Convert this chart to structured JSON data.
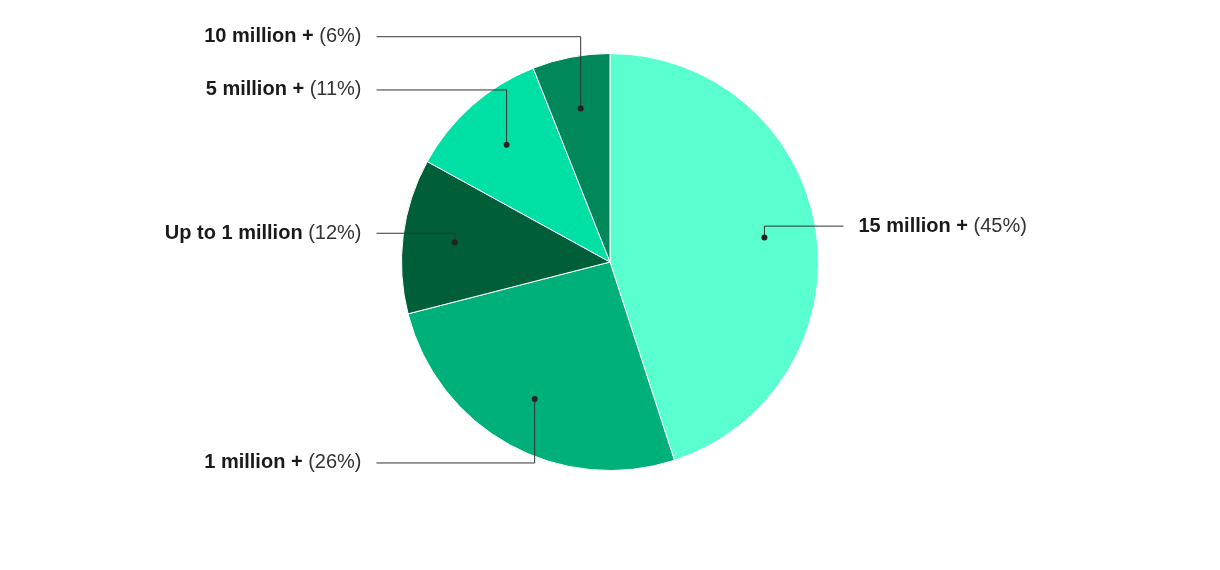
{
  "chart_data": {
    "type": "pie",
    "categories": [
      "15 million +",
      "1 million +",
      "Up to 1 million",
      "5 million +",
      "10 million +"
    ],
    "values": [
      45,
      26,
      12,
      11,
      6
    ],
    "colors": [
      "#5affd0",
      "#00b07a",
      "#005f38",
      "#00e0a4",
      "#00885a"
    ],
    "value_labels": [
      "(45%)",
      "(26%)",
      "(12%)",
      "(11%)",
      "(6%)"
    ],
    "legend": false
  }
}
